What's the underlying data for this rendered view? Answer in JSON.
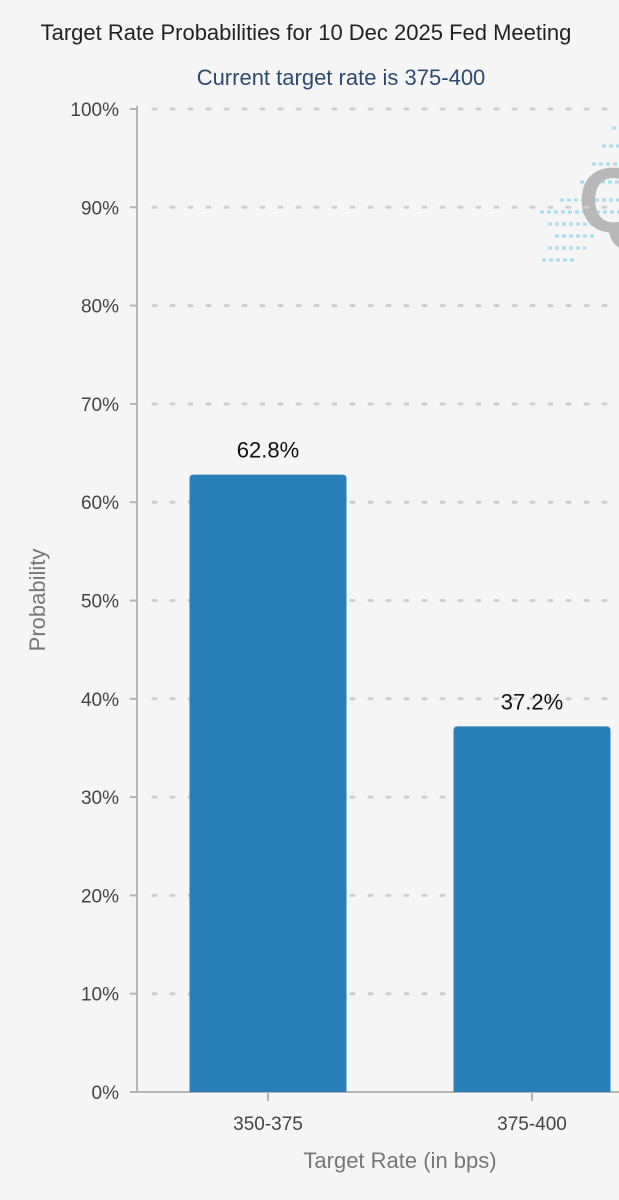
{
  "colors": {
    "background": "#f5f5f5",
    "bar": "#2a7fb8",
    "subtitle": "#2e4a6e",
    "gridline": "#cfcfcf",
    "axis": "#b5b5b5",
    "watermark_dash": "#aadcf0",
    "watermark_letter": "#b8b8b8"
  },
  "watermark": {
    "icon": "quikstrike-logo-icon",
    "text": "Q"
  },
  "chart_data": {
    "type": "bar",
    "title": "Target Rate Probabilities for 10 Dec 2025 Fed Meeting",
    "subtitle": "Current target rate is 375-400",
    "xlabel": "Target Rate (in bps)",
    "ylabel": "Probability",
    "categories": [
      "350-375",
      "375-400"
    ],
    "values": [
      62.8,
      37.2
    ],
    "value_labels": [
      "62.8%",
      "37.2%"
    ],
    "ylim": [
      0,
      100
    ],
    "yticks": [
      0,
      10,
      20,
      30,
      40,
      50,
      60,
      70,
      80,
      90,
      100
    ],
    "ytick_labels": [
      "0%",
      "10%",
      "20%",
      "30%",
      "40%",
      "50%",
      "60%",
      "70%",
      "80%",
      "90%",
      "100%"
    ],
    "grid": true,
    "legend": "none"
  }
}
